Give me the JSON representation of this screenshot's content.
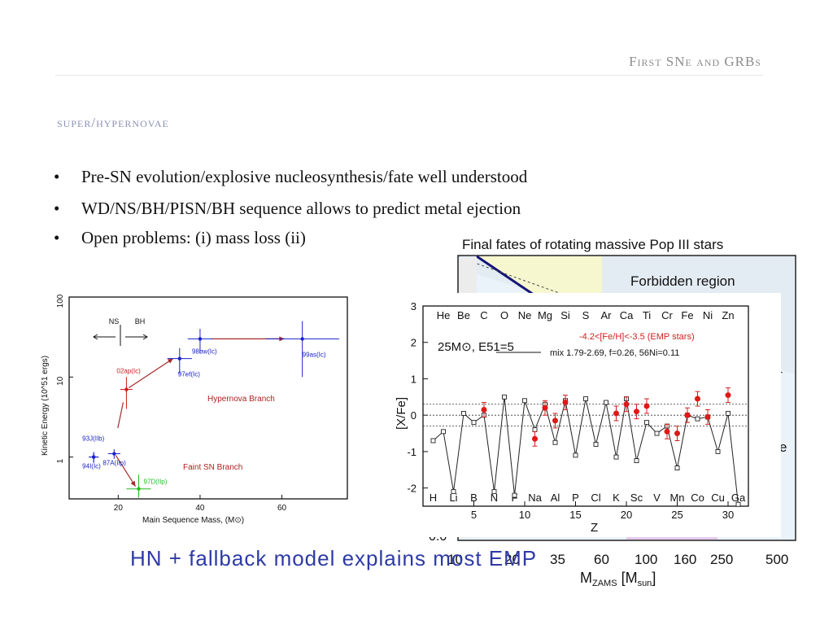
{
  "header": {
    "title": "First SNe and GRBs"
  },
  "section": {
    "subtitle": "super/hypernovae"
  },
  "bullets": [
    {
      "marker": "•",
      "text": "Pre-SN evolution/explosive nucleosynthesis/fate well understood"
    },
    {
      "marker": "•",
      "text": "WD/NS/BH/PISN/BH sequence allows to predict metal ejection"
    },
    {
      "marker": "•",
      "text": "Open problems: (i) mass loss (ii)"
    }
  ],
  "fig_fates": {
    "title": "Final fates of rotating massive Pop III stars",
    "forbidden_label": "Forbidden region",
    "edge_char": "e",
    "axis_bottom_label": "0.0",
    "x_ticks": [
      "10",
      "20",
      "35",
      "60",
      "100",
      "160",
      "250",
      "500"
    ],
    "xlabel_main": "M",
    "xlabel_sub": "ZAMS",
    "xlabel_unit_open": " [M",
    "xlabel_unit_sub": "sun",
    "xlabel_unit_close": "]"
  },
  "chart_data": [
    {
      "type": "scatter",
      "xlabel": "Main Sequence Mass, (M⊙)",
      "ylabel": "Kinetic Energy (10^51 ergs)",
      "x_ticks": [
        20,
        40,
        60
      ],
      "y_ticks": [
        "1",
        "10",
        "100"
      ],
      "y_scale": "log",
      "xlim": [
        8,
        76
      ],
      "ylim": [
        0.3,
        100
      ],
      "labels": {
        "ns": "NS",
        "bh": "BH",
        "hypernova": "Hypernova Branch",
        "faint": "Faint SN Branch"
      },
      "points": [
        {
          "name": "93J(IIb)",
          "x": 14,
          "y": 1,
          "color": "#1a22c8"
        },
        {
          "name": "94I(Ic)",
          "x": 14,
          "y": 1,
          "color": "#1a22c8"
        },
        {
          "name": "87A(IIp)",
          "x": 19,
          "y": 1.1,
          "color": "#1a22c8"
        },
        {
          "name": "97D(IIp)",
          "x": 25,
          "y": 0.4,
          "color": "#22bb22"
        },
        {
          "name": "02ap(Ic)",
          "x": 22,
          "y": 7,
          "color": "#cc1a1a"
        },
        {
          "name": "97ef(Ic)",
          "x": 35,
          "y": 17,
          "color": "#1a22c8"
        },
        {
          "name": "98bw(Ic)",
          "x": 40,
          "y": 30,
          "color": "#1a22c8"
        },
        {
          "name": "99as(Ic)",
          "x": 65,
          "y": 30,
          "color": "#1a22c8"
        }
      ]
    },
    {
      "type": "line",
      "xlabel": "Z",
      "ylabel": "[X/Fe]",
      "xlim": [
        0,
        32
      ],
      "ylim": [
        -2.5,
        3
      ],
      "x_ticks": [
        5,
        10,
        15,
        20,
        25,
        30
      ],
      "y_ticks": [
        3,
        2,
        1,
        0,
        -1,
        -2
      ],
      "top_elements": [
        "He",
        "Be",
        "C",
        "O",
        "Ne",
        "Mg",
        "Si",
        "S",
        "Ar",
        "Ca",
        "Ti",
        "Cr",
        "Fe",
        "Ni",
        "Zn"
      ],
      "bottom_elements": [
        "H",
        "Li",
        "B",
        "N",
        "F",
        "Na",
        "Al",
        "P",
        "Cl",
        "K",
        "Sc",
        "V",
        "Mn",
        "Co",
        "Cu",
        "Ga"
      ],
      "legend_model": "25M⊙, E51=5",
      "legend_emp": "-4.2<[Fe/H]<-3.5 (EMP stars)",
      "legend_mix": "mix 1.79-2.69, f=0.26, 56Ni=0.11",
      "series": [
        {
          "name": "mix 1.79-2.69, f=0.26, 56Ni=0.11",
          "x": [
            1,
            2,
            3,
            4,
            5,
            6,
            7,
            8,
            9,
            10,
            11,
            12,
            13,
            14,
            15,
            16,
            17,
            18,
            19,
            20,
            21,
            22,
            23,
            24,
            25,
            26,
            27,
            28,
            29,
            30,
            31
          ],
          "values": [
            -0.7,
            -0.45,
            -2.1,
            0.05,
            -0.2,
            0.0,
            -2.1,
            0.5,
            -2.2,
            0.4,
            -0.4,
            0.3,
            -0.75,
            0.4,
            -1.1,
            0.45,
            -0.8,
            0.35,
            -1.15,
            0.45,
            -1.25,
            -0.2,
            -0.5,
            -0.3,
            -1.45,
            0.0,
            -0.1,
            -0.05,
            -1.0,
            0.05,
            -2.45
          ]
        },
        {
          "name": "-4.2<[Fe/H]<-3.5 (EMP stars)",
          "x": [
            6,
            11,
            12,
            13,
            14,
            19,
            20,
            21,
            22,
            24,
            25,
            26,
            27,
            28,
            30
          ],
          "values": [
            0.15,
            -0.65,
            0.2,
            -0.15,
            0.35,
            0.05,
            0.3,
            0.1,
            0.25,
            -0.45,
            -0.5,
            0.0,
            0.45,
            -0.05,
            0.55
          ]
        }
      ]
    }
  ],
  "footer": {
    "text": "HN + fallback model explains most EMP"
  }
}
